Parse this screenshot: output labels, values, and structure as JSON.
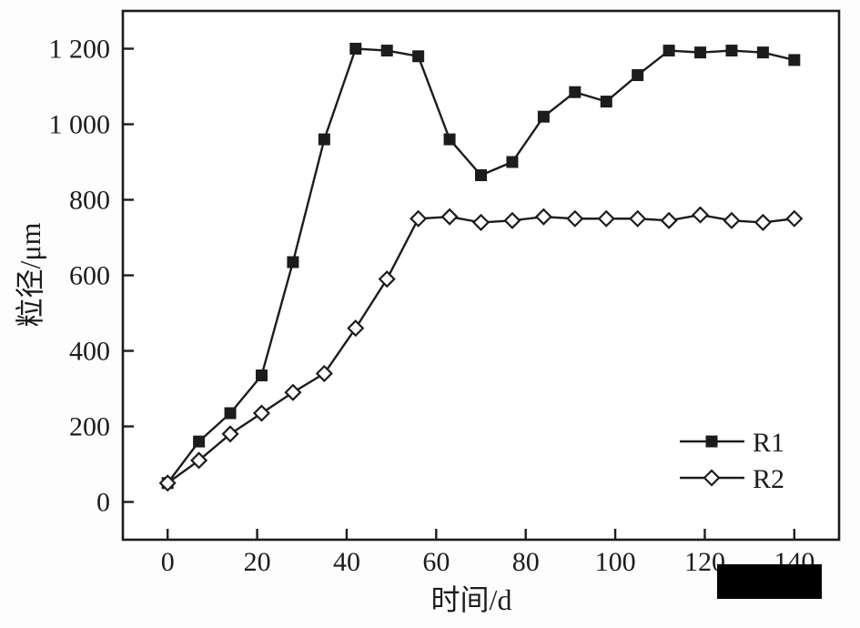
{
  "chart_data": {
    "type": "line",
    "title": "",
    "xlabel": "时间/d",
    "ylabel": "粒径/μm",
    "x": [
      0,
      7,
      14,
      21,
      28,
      35,
      42,
      49,
      56,
      63,
      70,
      77,
      84,
      91,
      98,
      105,
      112,
      119,
      126,
      133,
      140
    ],
    "series": [
      {
        "name": "R1",
        "marker": "filled-square",
        "color": "#1c1c1c",
        "values": [
          50,
          160,
          235,
          335,
          635,
          960,
          1200,
          1195,
          1180,
          960,
          865,
          900,
          1020,
          1085,
          1060,
          1130,
          1195,
          1190,
          1195,
          1190,
          1170
        ]
      },
      {
        "name": "R2",
        "marker": "open-diamond",
        "color": "#1c1c1c",
        "values": [
          50,
          110,
          180,
          235,
          290,
          340,
          460,
          590,
          750,
          755,
          740,
          745,
          755,
          750,
          750,
          750,
          745,
          760,
          745,
          740,
          750
        ]
      }
    ],
    "axes": {
      "x": {
        "label": "时间/d",
        "tick_values": [
          0,
          20,
          40,
          60,
          80,
          100,
          120,
          140
        ],
        "ticks": [
          "0",
          "20",
          "40",
          "60",
          "80",
          "100",
          "120",
          "140"
        ],
        "range": [
          -10,
          150
        ]
      },
      "y": {
        "label": "粒径/μm",
        "tick_values": [
          0,
          200,
          400,
          600,
          800,
          1000,
          1200
        ],
        "ticks": [
          "0",
          "200",
          "400",
          "600",
          "800",
          "1 000",
          "1 200"
        ],
        "range": [
          -100,
          1300
        ]
      }
    },
    "legend": {
      "position": "inside-bottom-right",
      "entries": [
        "R1",
        "R2"
      ]
    },
    "grid": false,
    "colors": {
      "ink": "#1c1c1c",
      "background": "#ffffff",
      "redaction": "#000000"
    }
  }
}
